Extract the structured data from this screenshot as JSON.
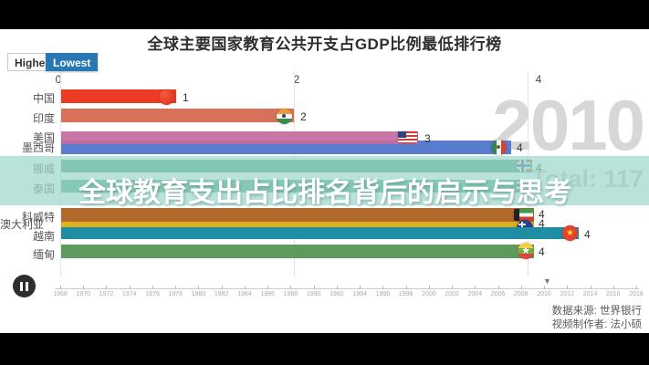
{
  "title": "全球主要国家教育公共开支占GDP比例最低排行榜",
  "controls": {
    "highest_label": "Highest",
    "lowest_label": "Lowest",
    "active": "Lowest",
    "active_color": "#2878b5"
  },
  "year_display": "2010",
  "total_display": "Total: 117",
  "overlay": {
    "text": "全球教育支出占比排名背后的启示与思考"
  },
  "chart_data": {
    "type": "bar",
    "orientation": "horizontal",
    "title": "全球主要国家教育公共开支占GDP比例最低排行榜",
    "year": "2010",
    "xlim": [
      0,
      5
    ],
    "x_ticks": [
      "0",
      "2",
      "4"
    ],
    "grid": true,
    "series": [
      {
        "name": "中国",
        "value": 1,
        "color": "#ee3b26",
        "flag": "china-flag"
      },
      {
        "name": "印度",
        "value": 2,
        "color": "#d8705a",
        "flag": "india-flag"
      },
      {
        "name": "美国",
        "value": 3,
        "color": "#c46a9f",
        "flag": "usa-flag"
      },
      {
        "name": "墨西哥",
        "value": 4,
        "color": "#5a7ccf",
        "flag": "mexico-flag"
      },
      {
        "name": "挪威",
        "value": 4,
        "color": "#3f9a70",
        "flag": "norway-flag"
      },
      {
        "name": "泰国",
        "value": 4,
        "color": "#4aa181",
        "flag": "thailand-flag"
      },
      {
        "name": "科威特",
        "value": 4,
        "color": "#b26a2c",
        "flag": "kuwait-flag"
      },
      {
        "name": "澳大利亚",
        "value": 4,
        "color": "#ddb01c",
        "flag": "australia-flag"
      },
      {
        "name": "越南",
        "value": 4,
        "color": "#1f8ea4",
        "flag": "vietnam-flag"
      },
      {
        "name": "缅甸",
        "value": 4,
        "color": "#5c9a5e",
        "flag": "myanmar-flag"
      }
    ]
  },
  "timeline": {
    "years": [
      "1968",
      "1970",
      "1972",
      "1974",
      "1976",
      "1978",
      "1980",
      "1982",
      "1984",
      "1986",
      "1988",
      "1990",
      "1992",
      "1994",
      "1996",
      "1998",
      "2000",
      "2002",
      "2004",
      "2006",
      "2008",
      "2010",
      "2012",
      "2014",
      "2016",
      "2018"
    ],
    "marker_year": "2010",
    "marker_icon": "▼"
  },
  "player": {
    "state_icon": "pause"
  },
  "credits": {
    "source": "数据来源: 世界银行",
    "creator": "视频制作者: 法小硕"
  }
}
